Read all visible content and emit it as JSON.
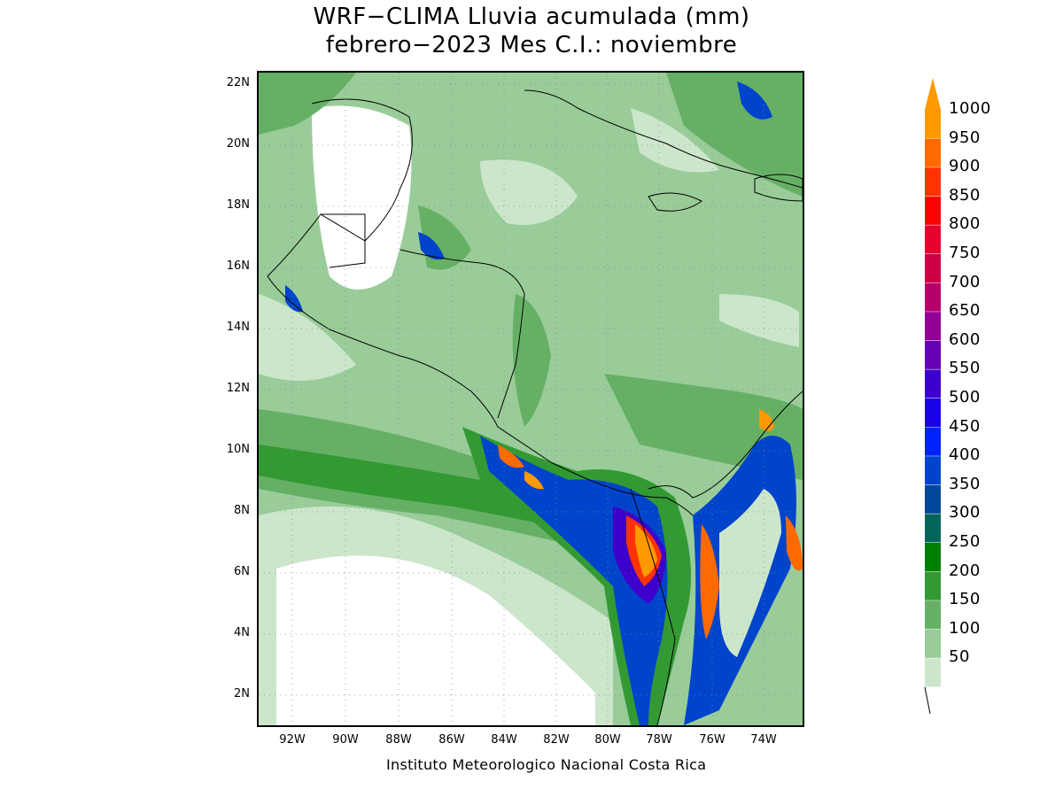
{
  "title": {
    "line1": "WRF−CLIMA Lluvia acumulada (mm)",
    "line2": "febrero−2023 Mes C.I.: noviembre"
  },
  "credit": "Instituto Meteorologico Nacional Costa Rica",
  "axes": {
    "lat_labels": [
      "22N",
      "20N",
      "18N",
      "16N",
      "14N",
      "12N",
      "10N",
      "8N",
      "6N",
      "4N",
      "2N"
    ],
    "lon_labels": [
      "92W",
      "90W",
      "88W",
      "86W",
      "84W",
      "82W",
      "80W",
      "78W",
      "76W",
      "74W"
    ]
  },
  "colorbar": {
    "levels": [
      "1000",
      "950",
      "900",
      "850",
      "800",
      "750",
      "700",
      "650",
      "600",
      "550",
      "500",
      "450",
      "400",
      "350",
      "300",
      "250",
      "200",
      "150",
      "100",
      "50"
    ],
    "colors": [
      "#ff9900",
      "#ff6a00",
      "#ff3300",
      "#ff0000",
      "#e6002e",
      "#cc0044",
      "#b4006b",
      "#930096",
      "#6600b3",
      "#3d00cc",
      "#1a00e6",
      "#0022ff",
      "#0044cc",
      "#004799",
      "#00665a",
      "#008000",
      "#339933",
      "#66b066",
      "#99cc99",
      "#cce6cc"
    ],
    "arrow_color": "#ff9900"
  }
}
